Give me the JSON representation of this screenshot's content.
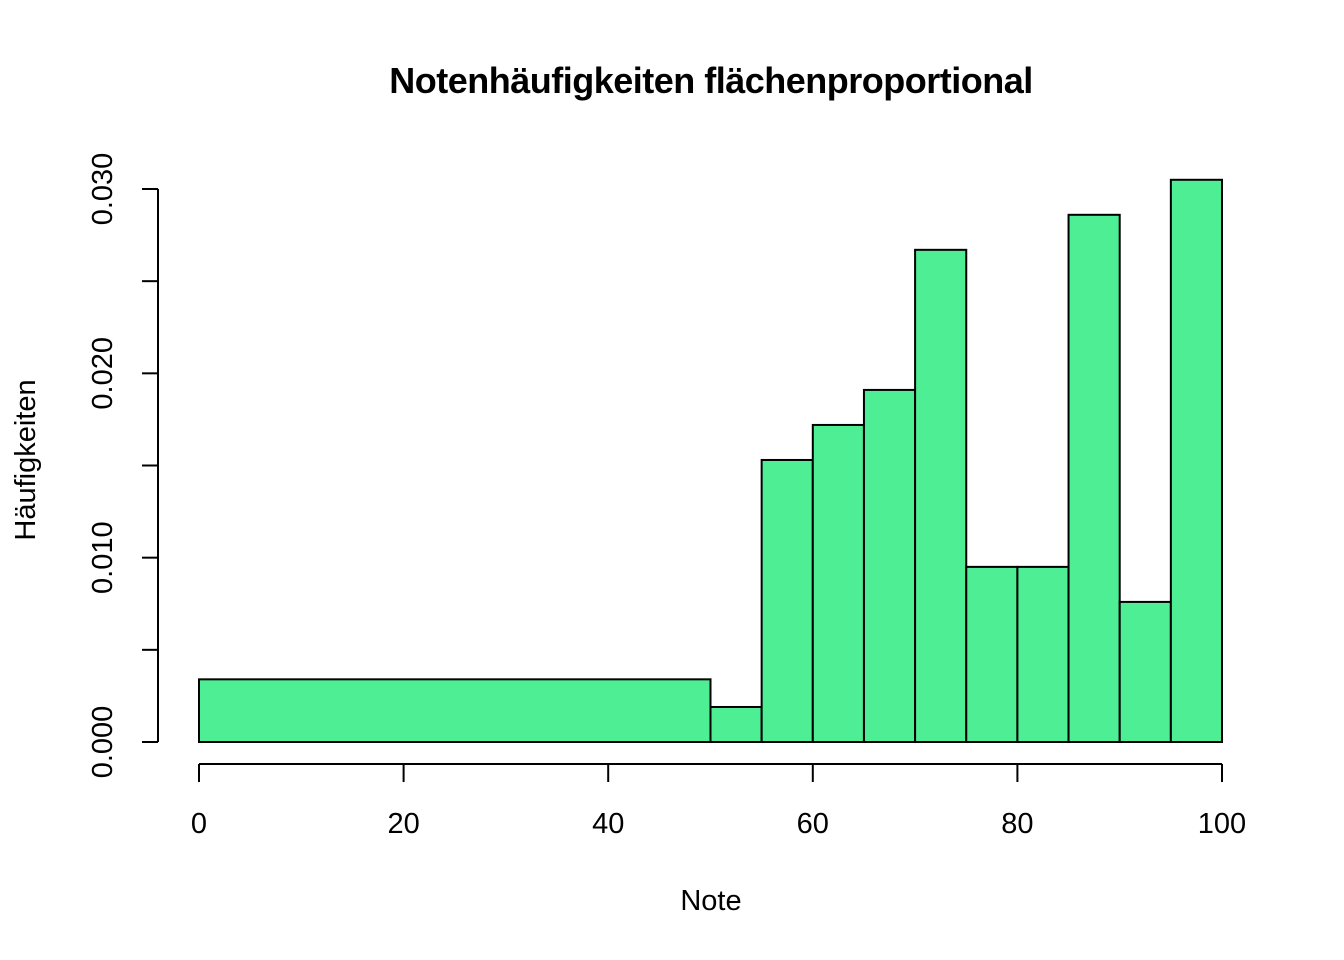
{
  "chart_data": {
    "type": "bar",
    "title": "Notenhäufigkeiten flächenproportional",
    "xlabel": "Note",
    "ylabel": "Häufigkeiten",
    "xlim": [
      0,
      100
    ],
    "ylim": [
      0,
      0.03
    ],
    "x_ticks": [
      0,
      20,
      40,
      60,
      80,
      100
    ],
    "x_tick_labels": [
      "0",
      "20",
      "40",
      "60",
      "80",
      "100"
    ],
    "y_ticks": [
      0,
      0.005,
      0.01,
      0.015,
      0.02,
      0.025,
      0.03
    ],
    "y_tick_labels": [
      "0.000",
      "",
      "0.010",
      "",
      "0.020",
      "",
      "0.030"
    ],
    "bar_color": "#4EEE94",
    "bar_edge_color": "#000000",
    "grid": false,
    "bins": [
      {
        "start": 0,
        "end": 50,
        "value": 0.0034
      },
      {
        "start": 50,
        "end": 55,
        "value": 0.0019
      },
      {
        "start": 55,
        "end": 60,
        "value": 0.0153
      },
      {
        "start": 60,
        "end": 65,
        "value": 0.0172
      },
      {
        "start": 65,
        "end": 70,
        "value": 0.0191
      },
      {
        "start": 70,
        "end": 75,
        "value": 0.0267
      },
      {
        "start": 75,
        "end": 80,
        "value": 0.0095
      },
      {
        "start": 80,
        "end": 85,
        "value": 0.0095
      },
      {
        "start": 85,
        "end": 90,
        "value": 0.0286
      },
      {
        "start": 90,
        "end": 95,
        "value": 0.0076
      },
      {
        "start": 95,
        "end": 100,
        "value": 0.0305
      }
    ]
  }
}
